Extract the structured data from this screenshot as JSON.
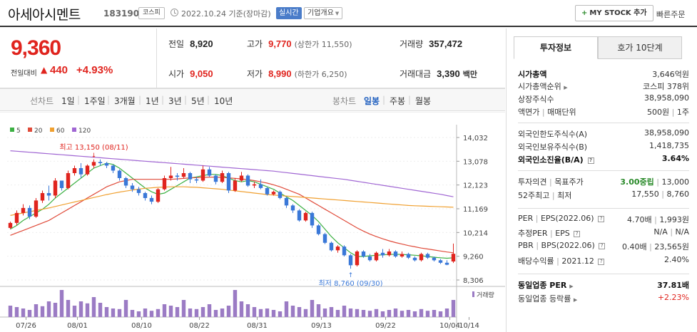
{
  "header": {
    "stock_name": "아세아시멘트",
    "stock_code": "183190",
    "market": "코스피",
    "date_text": "2022.10.24 기준(장마감)",
    "realtime_label": "실시간",
    "overview_label": "기업개요",
    "mystock_label": "MY STOCK 추가",
    "quick_order_label": "빠른주문"
  },
  "quote": {
    "price": "9,360",
    "change_label": "전일대비",
    "change_arrow": "▲",
    "change": "440",
    "change_pct": "+4.93%",
    "prev_label": "전일",
    "prev": "8,920",
    "open_label": "시가",
    "open": "9,050",
    "high_label": "고가",
    "high": "9,770",
    "upper_limit": "(상한가 11,550)",
    "low_label": "저가",
    "low": "8,990",
    "lower_limit": "(하한가 6,250)",
    "volume_label": "거래량",
    "volume": "357,472",
    "amount_label": "거래대금",
    "amount": "3,390",
    "amount_unit": "백만"
  },
  "tabs": {
    "line_chart": "선차트",
    "periods": [
      "1일",
      "1주일",
      "3개월",
      "1년",
      "3년",
      "5년",
      "10년"
    ],
    "candle_chart": "봉차트",
    "candle_periods": [
      "일봉",
      "주봉",
      "월봉"
    ],
    "selected_candle": "일봉"
  },
  "chart": {
    "legend": [
      {
        "label": "5",
        "color": "#3cb043"
      },
      {
        "label": "20",
        "color": "#e04b3a"
      },
      {
        "label": "60",
        "color": "#f0a030"
      },
      {
        "label": "120",
        "color": "#a066d3"
      }
    ],
    "y_ticks": [
      "14,032",
      "13,078",
      "12,123",
      "11,169",
      "10,214",
      "9,260",
      "8,306"
    ],
    "x_ticks": [
      "07/26",
      "08/01",
      "08/10",
      "08/22",
      "08/31",
      "09/13",
      "09/22",
      "10/04",
      "10/14"
    ],
    "max_annotation": "최고 13,150 (08/11)",
    "min_annotation": "최저 8,760 (09/30)",
    "volume_label": "거래량",
    "up_color": "#e0241e",
    "down_color": "#3a78d8",
    "volume_color": "#9b7bc4"
  },
  "chart_data": {
    "type": "candlestick",
    "ylim": [
      8306,
      14032
    ],
    "x_labels": [
      "07/26",
      "08/01",
      "08/10",
      "08/22",
      "08/31",
      "09/13",
      "09/22",
      "10/04",
      "10/14"
    ],
    "candles": [
      [
        10400,
        10650,
        10350,
        10600
      ],
      [
        10600,
        11100,
        10500,
        11000
      ],
      [
        11000,
        11350,
        10900,
        11200
      ],
      [
        11200,
        11300,
        10750,
        10850
      ],
      [
        10850,
        11600,
        10800,
        11500
      ],
      [
        11500,
        11900,
        11400,
        11800
      ],
      [
        11800,
        12100,
        11500,
        11700
      ],
      [
        11700,
        12400,
        11600,
        12300
      ],
      [
        12300,
        12300,
        11900,
        12000
      ],
      [
        12000,
        12700,
        11950,
        12600
      ],
      [
        12600,
        12900,
        12500,
        12800
      ],
      [
        12800,
        13000,
        12400,
        12550
      ],
      [
        12550,
        12950,
        12500,
        12900
      ],
      [
        12900,
        13150,
        12800,
        13050
      ],
      [
        13050,
        13150,
        12900,
        13000
      ],
      [
        13000,
        13050,
        12800,
        12900
      ],
      [
        12900,
        12950,
        12600,
        12700
      ],
      [
        12700,
        12750,
        12300,
        12400
      ],
      [
        12400,
        12450,
        12000,
        12100
      ],
      [
        12100,
        12200,
        11850,
        11950
      ],
      [
        11950,
        12050,
        11700,
        11800
      ],
      [
        11800,
        11850,
        11500,
        11600
      ],
      [
        11600,
        11700,
        11350,
        11450
      ],
      [
        11450,
        12000,
        11400,
        11950
      ],
      [
        11950,
        12500,
        11900,
        12400
      ],
      [
        12400,
        12850,
        12300,
        12500
      ],
      [
        12500,
        12600,
        12300,
        12450
      ],
      [
        12450,
        12800,
        12400,
        12600
      ],
      [
        12600,
        12650,
        12200,
        12350
      ],
      [
        12350,
        12450,
        12200,
        12300
      ],
      [
        12300,
        12900,
        12250,
        12750
      ],
      [
        12750,
        12850,
        12450,
        12500
      ],
      [
        12500,
        12550,
        12150,
        12250
      ],
      [
        12250,
        12700,
        12200,
        12600
      ],
      [
        12600,
        12650,
        11800,
        11900
      ],
      [
        11900,
        12400,
        11850,
        12300
      ],
      [
        12300,
        12650,
        12250,
        12500
      ],
      [
        12500,
        12550,
        12050,
        12100
      ],
      [
        12100,
        12250,
        12000,
        12150
      ],
      [
        12150,
        12350,
        11950,
        12000
      ],
      [
        12000,
        12050,
        11700,
        11750
      ],
      [
        11750,
        11900,
        11700,
        11850
      ],
      [
        11850,
        11900,
        11550,
        11600
      ],
      [
        11600,
        11650,
        11200,
        11300
      ],
      [
        11300,
        11350,
        11000,
        11100
      ],
      [
        11100,
        11150,
        10650,
        10700
      ],
      [
        10700,
        11050,
        10650,
        11000
      ],
      [
        11000,
        11050,
        10400,
        10500
      ],
      [
        10500,
        10550,
        10100,
        10150
      ],
      [
        10150,
        10200,
        9750,
        9800
      ],
      [
        9800,
        9850,
        9450,
        9500
      ],
      [
        9500,
        9700,
        9400,
        9650
      ],
      [
        9650,
        9700,
        9250,
        9300
      ],
      [
        9300,
        9350,
        8760,
        8900
      ],
      [
        8900,
        9500,
        8850,
        9450
      ],
      [
        9450,
        9500,
        9200,
        9250
      ],
      [
        9250,
        9350,
        9050,
        9100
      ],
      [
        9100,
        9450,
        9050,
        9400
      ],
      [
        9400,
        9550,
        9200,
        9300
      ],
      [
        9300,
        9550,
        9250,
        9450
      ],
      [
        9450,
        9500,
        9200,
        9250
      ],
      [
        9250,
        9450,
        9200,
        9350
      ],
      [
        9350,
        9400,
        9150,
        9200
      ],
      [
        9200,
        9250,
        9050,
        9100
      ],
      [
        9100,
        9400,
        9050,
        9350
      ],
      [
        9350,
        9400,
        9150,
        9200
      ],
      [
        9200,
        9250,
        9050,
        9100
      ],
      [
        9100,
        9150,
        8950,
        9000
      ],
      [
        9000,
        9100,
        8900,
        8920
      ],
      [
        9050,
        9770,
        8990,
        9360
      ]
    ],
    "volume": [
      40,
      35,
      30,
      25,
      45,
      38,
      55,
      50,
      95,
      60,
      40,
      55,
      48,
      70,
      50,
      35,
      30,
      28,
      60,
      25,
      20,
      30,
      22,
      28,
      45,
      40,
      35,
      60,
      30,
      28,
      35,
      45,
      25,
      30,
      40,
      95,
      55,
      45,
      35,
      28,
      30,
      25,
      20,
      55,
      40,
      35,
      28,
      60,
      45,
      30,
      35,
      25,
      40,
      30,
      28,
      25,
      22,
      28,
      20,
      25,
      30,
      22,
      25,
      20,
      28,
      22,
      25,
      20,
      30,
      60
    ],
    "ma": {
      "5": [
        10350,
        10500,
        10700,
        10850,
        11000,
        11150,
        11350,
        11600,
        11800,
        12000,
        12200,
        12400,
        12600,
        12800,
        12900,
        13000,
        12950,
        12800,
        12600,
        12400,
        12200,
        12000,
        11850,
        11750,
        11800,
        11950,
        12100,
        12250,
        12400,
        12450,
        12500,
        12550,
        12550,
        12500,
        12400,
        12300,
        12250,
        12300,
        12250,
        12150,
        12050,
        11950,
        11800,
        11650,
        11500,
        11300,
        11100,
        10900,
        10650,
        10350,
        10050,
        9800,
        9600,
        9400,
        9250,
        9250,
        9280,
        9300,
        9320,
        9330,
        9340,
        9330,
        9320,
        9300,
        9280,
        9250,
        9220,
        9200,
        9180,
        9200
      ],
      "20": [
        10100,
        10200,
        10300,
        10400,
        10500,
        10600,
        10700,
        10850,
        11000,
        11150,
        11300,
        11450,
        11600,
        11750,
        11900,
        12050,
        12150,
        12250,
        12300,
        12350,
        12350,
        12350,
        12350,
        12350,
        12350,
        12350,
        12370,
        12390,
        12410,
        12420,
        12430,
        12440,
        12440,
        12430,
        12410,
        12390,
        12370,
        12340,
        12300,
        12250,
        12200,
        12130,
        12050,
        11950,
        11850,
        11750,
        11600,
        11450,
        11300,
        11150,
        11000,
        10850,
        10700,
        10550,
        10400,
        10270,
        10150,
        10050,
        9960,
        9880,
        9810,
        9750,
        9690,
        9640,
        9590,
        9550,
        9510,
        9470,
        9430,
        9400
      ],
      "60": [
        10900,
        10950,
        11000,
        11050,
        11100,
        11150,
        11200,
        11260,
        11320,
        11380,
        11440,
        11500,
        11560,
        11620,
        11680,
        11740,
        11790,
        11840,
        11880,
        11920,
        11960,
        11990,
        12010,
        12030,
        12040,
        12050,
        12050,
        12050,
        12040,
        12030,
        12010,
        11990,
        11970,
        11950,
        11920,
        11890,
        11860,
        11830,
        11800,
        11770,
        11740,
        11720,
        11700,
        11680,
        11660,
        11640,
        11620,
        11600,
        11580,
        11560,
        11540,
        11520,
        11500,
        11480,
        11460,
        11440,
        11420,
        11400,
        11380,
        11360,
        11340,
        11320,
        11300,
        11290,
        11280,
        11270,
        11260,
        11250,
        11240,
        11230
      ],
      "120": [
        13500,
        13480,
        13460,
        13440,
        13420,
        13400,
        13380,
        13360,
        13340,
        13320,
        13300,
        13280,
        13260,
        13240,
        13220,
        13200,
        13180,
        13160,
        13140,
        13120,
        13100,
        13080,
        13060,
        13040,
        13020,
        13000,
        12980,
        12960,
        12940,
        12920,
        12900,
        12880,
        12860,
        12840,
        12820,
        12800,
        12780,
        12760,
        12740,
        12720,
        12700,
        12680,
        12650,
        12620,
        12590,
        12560,
        12530,
        12500,
        12470,
        12440,
        12410,
        12380,
        12350,
        12310,
        12270,
        12230,
        12190,
        12150,
        12110,
        12070,
        12030,
        11990,
        11950,
        11910,
        11870,
        11830,
        11790,
        11750,
        11700,
        11650
      ]
    }
  },
  "info_panel": {
    "tab_active": "투자정보",
    "tab_inactive": "호가 10단계",
    "rows": {
      "market_cap_label": "시가총액",
      "market_cap": "3,646억원",
      "market_cap_rank_label": "시가총액순위",
      "market_cap_rank": "코스피 378위",
      "shares_label": "상장주식수",
      "shares": "38,958,090",
      "par_label": "액면가",
      "trade_unit_label": "매매단위",
      "par": "500원",
      "trade_unit": "1주",
      "foreign_limit_label": "외국인한도주식수(A)",
      "foreign_limit": "38,958,090",
      "foreign_hold_label": "외국인보유주식수(B)",
      "foreign_hold": "1,418,735",
      "foreign_rate_label": "외국인소진율(B/A)",
      "foreign_rate": "3.64%",
      "opinion_label": "투자의견",
      "target_label": "목표주가",
      "opinion": "3.00중립",
      "target": "13,000",
      "w52_high_label": "52주최고",
      "w52_low_label": "최저",
      "w52_high": "17,550",
      "w52_low": "8,760",
      "per_label": "PER",
      "eps_label": "EPS(2022.06)",
      "per": "4.70배",
      "eps": "1,993원",
      "est_per_label": "추정PER",
      "est_eps_label": "EPS",
      "est_per": "N/A",
      "est_eps": "N/A",
      "pbr_label": "PBR",
      "bps_label": "BPS(2022.06)",
      "pbr": "0.40배",
      "bps": "23,565원",
      "dividend_label": "배당수익률",
      "dividend_date": "2021.12",
      "dividend": "2.40%",
      "industry_per_label": "동일업종 PER",
      "industry_per": "37.81배",
      "industry_chg_label": "동일업종 등락률",
      "industry_chg": "+2.23%"
    }
  }
}
